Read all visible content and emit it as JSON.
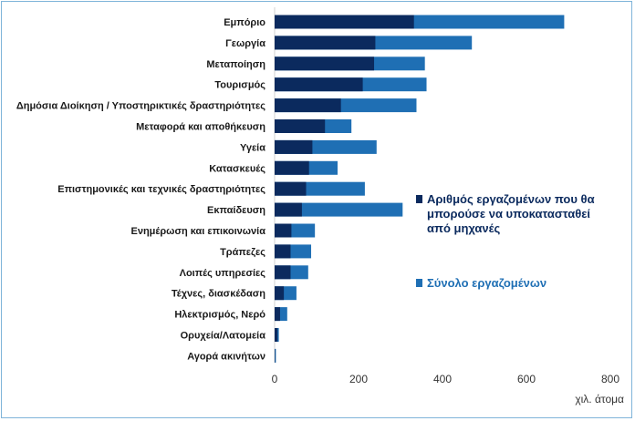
{
  "chart_data": {
    "type": "bar",
    "orientation": "horizontal",
    "stacked": false,
    "overlaid": true,
    "categories": [
      "Εμπόριο",
      "Γεωργία",
      "Μεταποίηση",
      "Τουρισμός",
      "Δημόσια Διοίκηση / Υποστηρικτικές δραστηριότητες",
      "Μεταφορά και αποθήκευση",
      "Υγεία",
      "Κατασκευές",
      "Επιστημονικές και τεχνικές δραστηριότητες",
      "Εκπαίδευση",
      "Ενημέρωση και επικοινωνία",
      "Τράπεζες",
      "Λοιπές υπηρεσίες",
      "Τέχνες, διασκέδαση",
      "Ηλεκτρισμός, Νερό",
      "Ορυχεία/Λατομεία",
      "Αγορά ακινήτων"
    ],
    "series": [
      {
        "name": "Σύνολο εργαζομένων",
        "color": "#1f6fb4",
        "values": [
          690,
          470,
          358,
          362,
          338,
          183,
          243,
          150,
          215,
          305,
          96,
          87,
          80,
          52,
          30,
          10,
          3
        ]
      },
      {
        "name": "Αριθμός εργαζομένων που θα μπορούσε να υποκατασταθεί από μηχανές",
        "color": "#0b2a5e",
        "values": [
          332,
          240,
          237,
          210,
          158,
          120,
          90,
          82,
          75,
          65,
          40,
          38,
          38,
          22,
          13,
          7,
          1
        ]
      }
    ],
    "xlim": [
      0,
      800
    ],
    "xticks": [
      "0",
      "200",
      "400",
      "600",
      "800"
    ],
    "xunit": "χιλ. άτομα",
    "legend_position": "right"
  },
  "legend": {
    "items": [
      {
        "label_lines": [
          "Αριθμός εργαζομένων που θα",
          "μπορούσε να υποκατασταθεί",
          "από μηχανές"
        ],
        "color": "#0b2a5e"
      },
      {
        "label_lines": [
          "Σύνολο εργαζομένων"
        ],
        "color": "#1f6fb4"
      }
    ]
  }
}
